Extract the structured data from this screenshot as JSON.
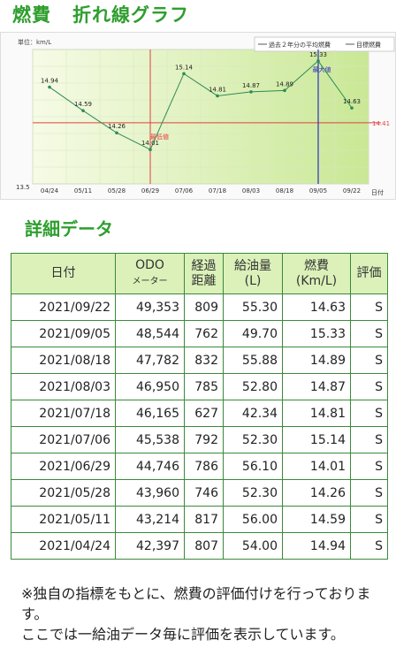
{
  "page": {
    "title_left": "燃費",
    "title_right": "折れ線グラフ"
  },
  "chart_data": {
    "type": "line",
    "unit_label": "単位：km/L",
    "legend": [
      {
        "name": "過去２年分の平均燃費",
        "color": "#c02020"
      },
      {
        "name": "目標燃費",
        "color": "#3030c0"
      }
    ],
    "categories": [
      "04/24",
      "05/11",
      "05/28",
      "06/29",
      "07/06",
      "07/18",
      "08/03",
      "08/18",
      "09/05",
      "09/22"
    ],
    "x_axis_label": "日付",
    "series": [
      {
        "values": [
          14.94,
          14.59,
          14.26,
          14.01,
          15.14,
          14.81,
          14.87,
          14.89,
          15.33,
          14.63
        ],
        "color": "#2e8b57"
      }
    ],
    "point_labels": [
      "14.94",
      "14.59",
      "14.26",
      "14.01",
      "15.14",
      "14.81",
      "14.87",
      "14.89",
      "15.33",
      "14.63"
    ],
    "reference_line": {
      "value": 14.41,
      "label": "14.41",
      "color": "#e04040"
    },
    "min_marker": {
      "index": 3,
      "label": "最低値",
      "color": "#e04040"
    },
    "max_marker": {
      "index": 8,
      "label": "最大値",
      "color": "#3030c0"
    },
    "ylim": [
      13.5,
      15.5
    ],
    "y_min_label": "13.5",
    "grid": true
  },
  "detail": {
    "title": "詳細データ",
    "headers": {
      "date": "日付",
      "odo": "ODO",
      "odo_sub": "メーター",
      "dist1": "経過",
      "dist2": "距離",
      "fuel1": "給油量",
      "fuel2": "(L)",
      "eff1": "燃費",
      "eff2": "(Km/L)",
      "rating": "評価"
    },
    "rows": [
      {
        "date": "2021/09/22",
        "odo": "49,353",
        "dist": "809",
        "fuel": "55.30",
        "eff": "14.63",
        "rating": "S"
      },
      {
        "date": "2021/09/05",
        "odo": "48,544",
        "dist": "762",
        "fuel": "49.70",
        "eff": "15.33",
        "rating": "S"
      },
      {
        "date": "2021/08/18",
        "odo": "47,782",
        "dist": "832",
        "fuel": "55.88",
        "eff": "14.89",
        "rating": "S"
      },
      {
        "date": "2021/08/03",
        "odo": "46,950",
        "dist": "785",
        "fuel": "52.80",
        "eff": "14.87",
        "rating": "S"
      },
      {
        "date": "2021/07/18",
        "odo": "46,165",
        "dist": "627",
        "fuel": "42.34",
        "eff": "14.81",
        "rating": "S"
      },
      {
        "date": "2021/07/06",
        "odo": "45,538",
        "dist": "792",
        "fuel": "52.30",
        "eff": "15.14",
        "rating": "S"
      },
      {
        "date": "2021/06/29",
        "odo": "44,746",
        "dist": "786",
        "fuel": "56.10",
        "eff": "14.01",
        "rating": "S"
      },
      {
        "date": "2021/05/28",
        "odo": "43,960",
        "dist": "746",
        "fuel": "52.30",
        "eff": "14.26",
        "rating": "S"
      },
      {
        "date": "2021/05/11",
        "odo": "43,214",
        "dist": "817",
        "fuel": "56.00",
        "eff": "14.59",
        "rating": "S"
      },
      {
        "date": "2021/04/24",
        "odo": "42,397",
        "dist": "807",
        "fuel": "54.00",
        "eff": "14.94",
        "rating": "S"
      }
    ]
  },
  "note": {
    "line1": "※独自の指標をもとに、燃費の評価付けを行っております。",
    "line2": "ここでは一給油データ毎に評価を表示しています。"
  },
  "colors": {
    "accent_green": "#2e9e2e",
    "header_bg": "#dbf1b9",
    "border": "#3a8a3a"
  }
}
